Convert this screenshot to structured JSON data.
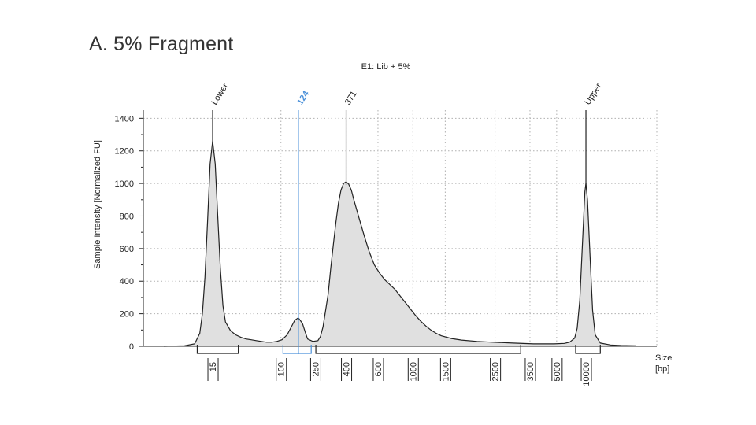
{
  "page_title": "A. 5% Fragment",
  "chart_data": {
    "type": "area",
    "title": "E1: Lib + 5%",
    "ylabel": "Sample Intensity [Normalized FU]",
    "xlabel": "Size\n[bp]",
    "ylim": [
      0,
      1450
    ],
    "yticks": [
      0,
      200,
      400,
      600,
      800,
      1000,
      1200,
      1400
    ],
    "grid": true,
    "x_scale": "sizing-ladder",
    "xticks": [
      {
        "label": "15",
        "pos": 0.135
      },
      {
        "label": "100",
        "pos": 0.268
      },
      {
        "label": "250",
        "pos": 0.335
      },
      {
        "label": "400",
        "pos": 0.395
      },
      {
        "label": "600",
        "pos": 0.457
      },
      {
        "label": "1000",
        "pos": 0.525
      },
      {
        "label": "1500",
        "pos": 0.588
      },
      {
        "label": "2500",
        "pos": 0.685
      },
      {
        "label": "3500",
        "pos": 0.753
      },
      {
        "label": "5000",
        "pos": 0.805
      },
      {
        "label": "10000",
        "pos": 0.862
      }
    ],
    "gridlines_x_pos": [
      0.135,
      0.268,
      0.395,
      0.457,
      0.525,
      0.588,
      0.685,
      0.753,
      0.805,
      0.862
    ],
    "peaks": [
      {
        "label": "Lower",
        "size_bp": 15,
        "pos": 0.135,
        "height": 1260,
        "color": "#222222"
      },
      {
        "label": "124",
        "size_bp": 124,
        "pos": 0.302,
        "height": 175,
        "color": "#4a90d9"
      },
      {
        "label": "371",
        "size_bp": 371,
        "pos": 0.395,
        "height": 1010,
        "color": "#222222"
      },
      {
        "label": "Upper",
        "size_bp": 10000,
        "pos": 0.862,
        "height": 1000,
        "color": "#222222"
      }
    ],
    "trace": [
      [
        0.04,
        0
      ],
      [
        0.08,
        3
      ],
      [
        0.1,
        15
      ],
      [
        0.11,
        80
      ],
      [
        0.115,
        200
      ],
      [
        0.12,
        420
      ],
      [
        0.125,
        760
      ],
      [
        0.13,
        1120
      ],
      [
        0.135,
        1260
      ],
      [
        0.14,
        1120
      ],
      [
        0.145,
        800
      ],
      [
        0.15,
        480
      ],
      [
        0.155,
        250
      ],
      [
        0.16,
        150
      ],
      [
        0.17,
        95
      ],
      [
        0.18,
        70
      ],
      [
        0.19,
        55
      ],
      [
        0.2,
        45
      ],
      [
        0.21,
        40
      ],
      [
        0.22,
        35
      ],
      [
        0.23,
        30
      ],
      [
        0.24,
        25
      ],
      [
        0.25,
        25
      ],
      [
        0.26,
        30
      ],
      [
        0.27,
        40
      ],
      [
        0.28,
        70
      ],
      [
        0.29,
        130
      ],
      [
        0.295,
        160
      ],
      [
        0.302,
        175
      ],
      [
        0.31,
        140
      ],
      [
        0.315,
        90
      ],
      [
        0.32,
        45
      ],
      [
        0.33,
        30
      ],
      [
        0.34,
        35
      ],
      [
        0.345,
        60
      ],
      [
        0.35,
        120
      ],
      [
        0.36,
        320
      ],
      [
        0.365,
        480
      ],
      [
        0.37,
        620
      ],
      [
        0.375,
        760
      ],
      [
        0.38,
        880
      ],
      [
        0.385,
        960
      ],
      [
        0.39,
        1000
      ],
      [
        0.395,
        1010
      ],
      [
        0.4,
        995
      ],
      [
        0.405,
        960
      ],
      [
        0.41,
        900
      ],
      [
        0.42,
        790
      ],
      [
        0.43,
        680
      ],
      [
        0.44,
        580
      ],
      [
        0.45,
        500
      ],
      [
        0.46,
        450
      ],
      [
        0.47,
        410
      ],
      [
        0.48,
        380
      ],
      [
        0.49,
        350
      ],
      [
        0.5,
        310
      ],
      [
        0.51,
        270
      ],
      [
        0.52,
        230
      ],
      [
        0.53,
        190
      ],
      [
        0.54,
        155
      ],
      [
        0.55,
        125
      ],
      [
        0.56,
        100
      ],
      [
        0.57,
        80
      ],
      [
        0.58,
        65
      ],
      [
        0.6,
        48
      ],
      [
        0.62,
        38
      ],
      [
        0.65,
        30
      ],
      [
        0.68,
        25
      ],
      [
        0.72,
        20
      ],
      [
        0.76,
        15
      ],
      [
        0.8,
        15
      ],
      [
        0.82,
        18
      ],
      [
        0.83,
        25
      ],
      [
        0.84,
        50
      ],
      [
        0.845,
        110
      ],
      [
        0.85,
        280
      ],
      [
        0.855,
        620
      ],
      [
        0.86,
        950
      ],
      [
        0.862,
        1000
      ],
      [
        0.865,
        900
      ],
      [
        0.87,
        560
      ],
      [
        0.875,
        220
      ],
      [
        0.88,
        70
      ],
      [
        0.89,
        20
      ],
      [
        0.91,
        8
      ],
      [
        0.93,
        5
      ],
      [
        0.96,
        3
      ]
    ],
    "regions": [
      {
        "start": 0.105,
        "end": 0.185,
        "color": "#222222"
      },
      {
        "start": 0.272,
        "end": 0.327,
        "color": "#4a90d9"
      },
      {
        "start": 0.336,
        "end": 0.735,
        "color": "#222222"
      },
      {
        "start": 0.842,
        "end": 0.89,
        "color": "#222222"
      }
    ],
    "colors": {
      "fill": "#e0e0e0",
      "line": "#222222",
      "grid": "#b0b0b0",
      "highlight": "#4a90d9"
    }
  }
}
